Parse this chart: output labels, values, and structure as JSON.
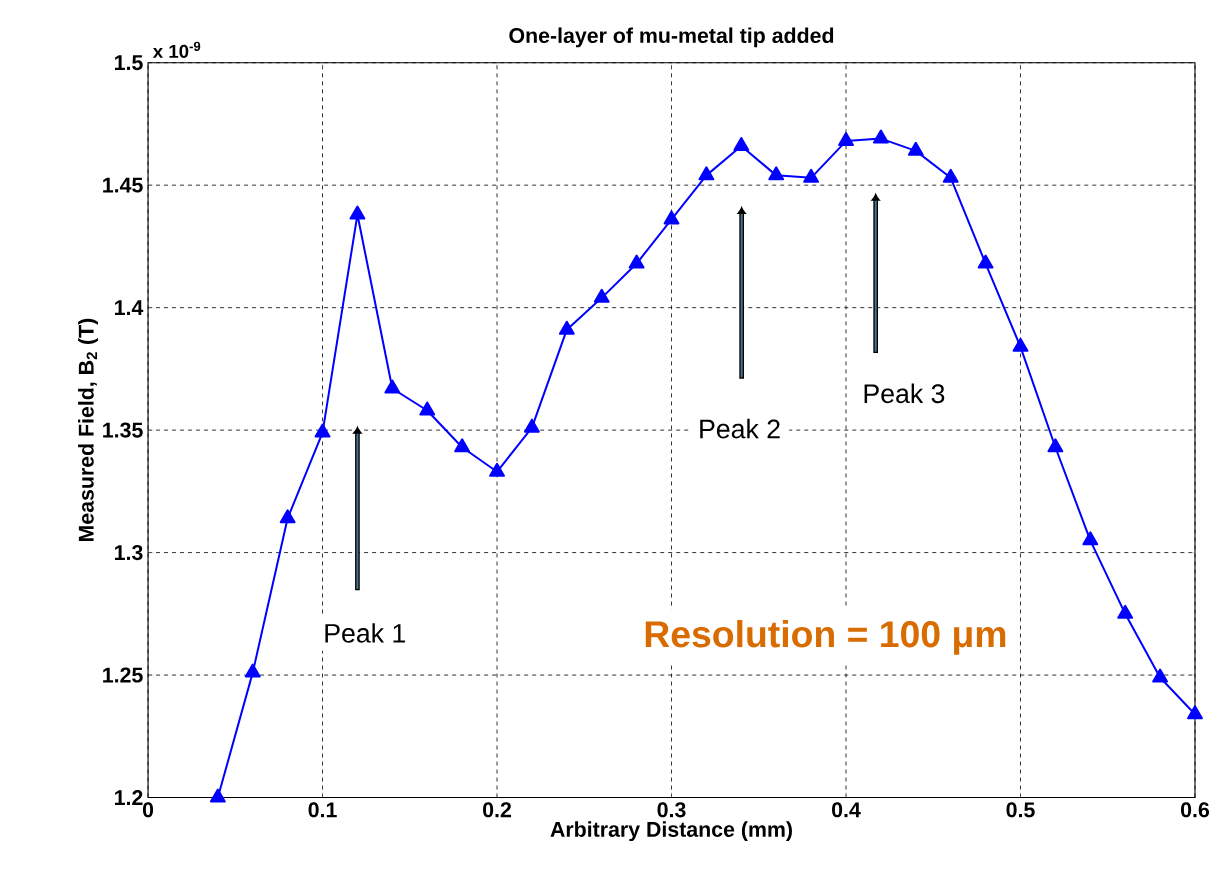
{
  "chart_data": {
    "type": "line",
    "title": "One-layer of mu-metal tip added",
    "xlabel": "Arbitrary Distance (mm)",
    "ylabel": "Measured Field, B$_{2}$ (T)",
    "x": [
      0.04,
      0.06,
      0.08,
      0.1,
      0.12,
      0.14,
      0.16,
      0.18,
      0.2,
      0.22,
      0.24,
      0.26,
      0.28,
      0.3,
      0.32,
      0.34,
      0.36,
      0.38,
      0.4,
      0.42,
      0.44,
      0.46,
      0.48,
      0.5,
      0.52,
      0.54,
      0.56,
      0.58,
      0.6
    ],
    "series": [
      {
        "color": "#0000ff",
        "values": [
          1.2,
          1.251,
          1.314,
          1.349,
          1.438,
          1.367,
          1.358,
          1.343,
          1.333,
          1.351,
          1.391,
          1.404,
          1.418,
          1.436,
          1.454,
          1.466,
          1.454,
          1.453,
          1.468,
          1.469,
          1.464,
          1.453,
          1.418,
          1.384,
          1.343,
          1.305,
          1.275,
          1.249,
          1.234
        ]
      }
    ],
    "xlim": [
      0,
      0.6
    ],
    "ylim": [
      1.2,
      1.5
    ],
    "xticks": [
      0,
      0.1,
      0.2,
      0.3,
      0.4,
      0.5,
      0.6
    ],
    "yticks": [
      1.2,
      1.25,
      1.3,
      1.35,
      1.4,
      1.45,
      1.5
    ],
    "grid": true,
    "marker": "triangle",
    "line_style": "solid",
    "annotations": [
      "x 10$^{-9}$",
      "Peak 1",
      "Peak 2",
      "Peak 3",
      "Resolution = 100 μm"
    ]
  }
}
